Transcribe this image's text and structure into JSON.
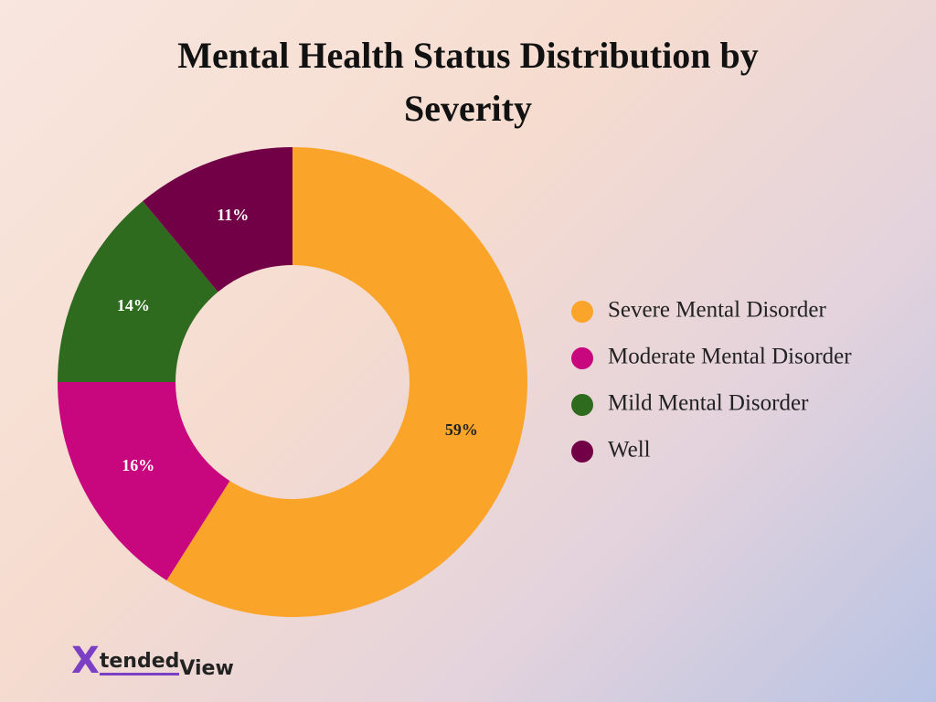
{
  "chart_data": {
    "type": "donut",
    "title": "Mental Health Status Distribution by Severity",
    "categories": [
      "Severe Mental Disorder",
      "Moderate Mental Disorder",
      "Mild Mental Disorder",
      "Well"
    ],
    "values": [
      59,
      16,
      14,
      11
    ],
    "value_labels": [
      "59%",
      "16%",
      "14%",
      "11%"
    ],
    "colors": [
      "#faa52a",
      "#c8067e",
      "#2e6b1e",
      "#720047"
    ],
    "legend": "right"
  },
  "logo": {
    "mark": "X",
    "text": "tended",
    "suffix": "View"
  }
}
